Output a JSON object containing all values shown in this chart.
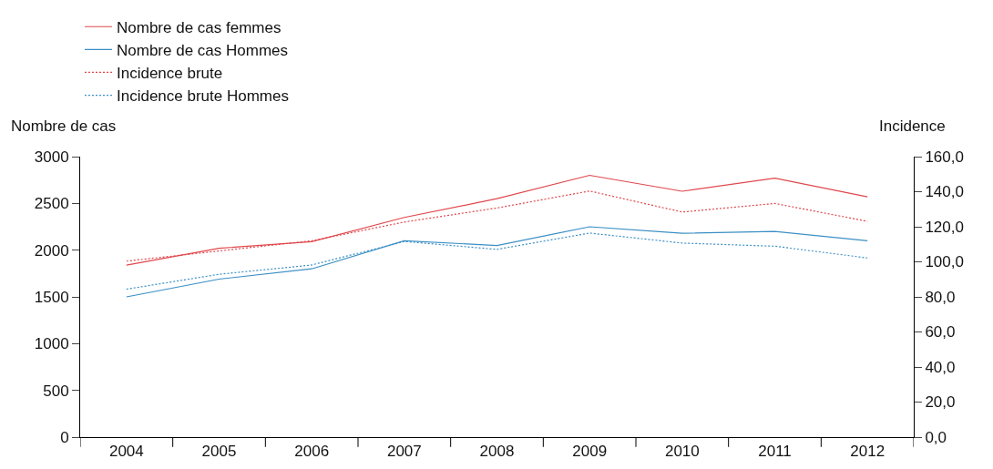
{
  "chart_data": {
    "type": "line",
    "ylabel": "Nombre de cas",
    "y2label": "Incidence",
    "categories": [
      "2004",
      "2005",
      "2006",
      "2007",
      "2008",
      "2009",
      "2010",
      "2011",
      "2012"
    ],
    "series": [
      {
        "name": "Nombre de cas femmes",
        "color": "#e0474c",
        "line_style": "solid",
        "values": [
          1840,
          2020,
          2090,
          2350,
          2550,
          2800,
          2630,
          2770,
          2570
        ]
      },
      {
        "name": "Nombre de cas Hommes",
        "color": "#3a8fc4",
        "line_style": "solid",
        "values": [
          1500,
          1690,
          1800,
          2100,
          2050,
          2250,
          2180,
          2200,
          2100
        ]
      },
      {
        "name": "Incidence brute",
        "color": "#e0474c",
        "line_style": "dotted",
        "axis": "y2",
        "values": [
          100.4,
          106.2,
          112.0,
          122.7,
          130.7,
          140.4,
          128.4,
          133.3,
          123.1
        ]
      },
      {
        "name": "Incidence brute Hommes",
        "color": "#3a8fc4",
        "line_style": "dotted",
        "axis": "y2",
        "values": [
          84.4,
          92.9,
          98.2,
          111.6,
          107.1,
          116.4,
          110.7,
          108.9,
          102.2
        ]
      }
    ],
    "ylim": [
      0,
      3000
    ],
    "yticks": [
      0,
      500,
      1000,
      1500,
      2000,
      2500,
      3000
    ],
    "y2lim": [
      0,
      160
    ],
    "y2ticks": [
      {
        "value": 0,
        "label": "0,0"
      },
      {
        "value": 20,
        "label": "20,0"
      },
      {
        "value": 40,
        "label": "40,0"
      },
      {
        "value": 60,
        "label": "60,0"
      },
      {
        "value": 80,
        "label": "80,0"
      },
      {
        "value": 100,
        "label": "100,0"
      },
      {
        "value": 120,
        "label": "120,0"
      },
      {
        "value": 140,
        "label": "140,0"
      },
      {
        "value": 160,
        "label": "160,0"
      }
    ],
    "grid": false,
    "legend": "top left",
    "marker": "none"
  }
}
